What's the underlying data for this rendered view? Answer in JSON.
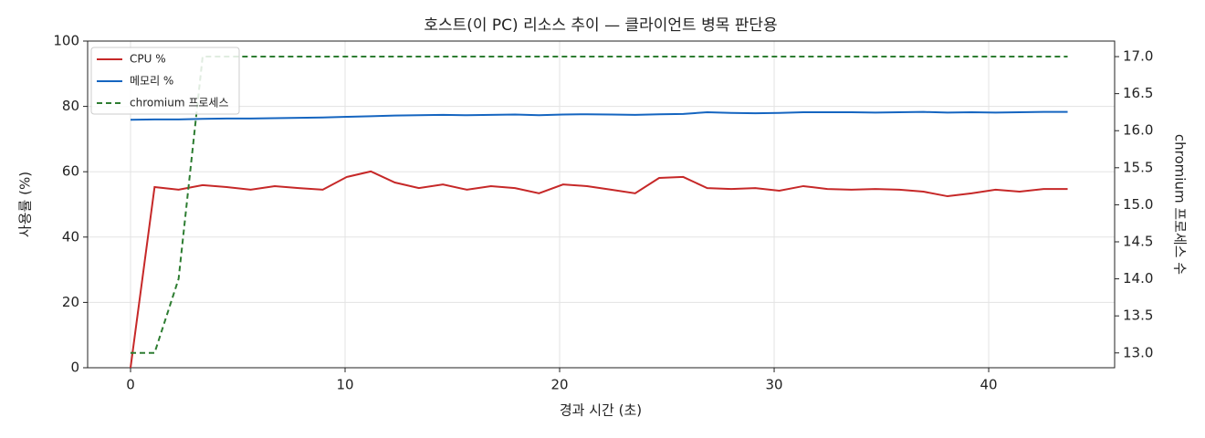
{
  "chart_data": {
    "type": "line",
    "title": "호스트(이 PC) 리소스 추이 — 클라이언트 병목 판단용",
    "xlabel": "경과 시간 (초)",
    "ylabel": "사용률 (%)",
    "y2label": "chromium 프로세스 수",
    "x": [
      0,
      1.12,
      2.24,
      3.36,
      4.48,
      5.6,
      6.72,
      7.84,
      8.96,
      10.08,
      11.2,
      12.32,
      13.44,
      14.56,
      15.68,
      16.8,
      17.92,
      19.04,
      20.16,
      21.28,
      22.4,
      23.52,
      24.64,
      25.76,
      26.88,
      28.0,
      29.12,
      30.24,
      31.36,
      32.48,
      33.6,
      34.72,
      35.84,
      36.96,
      38.08,
      39.2,
      40.32,
      41.44,
      42.56,
      43.68
    ],
    "series": [
      {
        "name": "CPU %",
        "color": "#c62828",
        "values": [
          0,
          55.3,
          54.5,
          55.9,
          55.3,
          54.5,
          55.6,
          55.0,
          54.5,
          58.4,
          60.1,
          56.7,
          55.0,
          56.1,
          54.5,
          55.6,
          55.0,
          53.4,
          56.1,
          55.6,
          54.5,
          53.4,
          58.1,
          58.4,
          55.0,
          54.7,
          55.0,
          54.2,
          55.6,
          54.7,
          54.5,
          54.7,
          54.5,
          53.9,
          52.5,
          53.4,
          54.5,
          53.9,
          54.7,
          54.7
        ]
      },
      {
        "name": "메모리 %",
        "color": "#1565c0",
        "values": [
          75.9,
          76.0,
          76.0,
          76.2,
          76.3,
          76.3,
          76.4,
          76.5,
          76.6,
          76.8,
          77.0,
          77.2,
          77.3,
          77.4,
          77.3,
          77.4,
          77.5,
          77.3,
          77.5,
          77.6,
          77.5,
          77.4,
          77.6,
          77.7,
          78.2,
          78.0,
          77.9,
          78.0,
          78.2,
          78.2,
          78.2,
          78.1,
          78.2,
          78.3,
          78.1,
          78.2,
          78.1,
          78.2,
          78.3,
          78.3
        ]
      },
      {
        "name": "chromium 프로세스",
        "color": "#2e7d32",
        "dashed": true,
        "axis": "y2",
        "values": [
          13,
          13,
          14,
          17,
          17,
          17,
          17,
          17,
          17,
          17,
          17,
          17,
          17,
          17,
          17,
          17,
          17,
          17,
          17,
          17,
          17,
          17,
          17,
          17,
          17,
          17,
          17,
          17,
          17,
          17,
          17,
          17,
          17,
          17,
          17,
          17,
          17,
          17,
          17,
          17
        ]
      }
    ],
    "xlim": [
      -2.0,
      45.87
    ],
    "xticks": [
      0,
      10,
      20,
      30,
      40
    ],
    "ylim": [
      0,
      100
    ],
    "yticks": [
      0,
      20,
      40,
      60,
      80,
      100
    ],
    "y2lim": [
      12.8,
      17.21
    ],
    "y2ticks": [
      {
        "value": 13,
        "label": "13.0"
      },
      13.5,
      {
        "value": 14,
        "label": "14.0"
      },
      14.5,
      {
        "value": 15,
        "label": "15.0"
      },
      15.5,
      {
        "value": 16,
        "label": "16.0"
      },
      16.5,
      {
        "value": 17,
        "label": "17.0"
      }
    ],
    "grid": true,
    "legend": "upper left"
  }
}
